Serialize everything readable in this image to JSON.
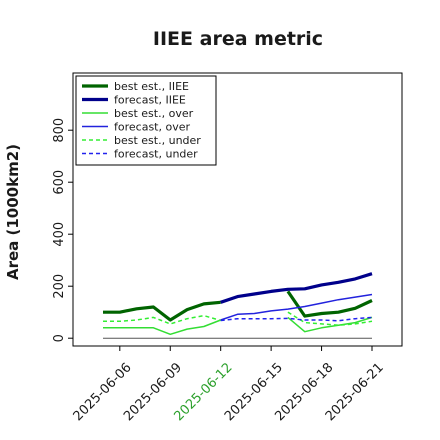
{
  "chart_data": {
    "type": "line",
    "title": "IIEE area metric",
    "xlabel": "",
    "ylabel": "Area (1000km2)",
    "ylim": [
      -30,
      1020
    ],
    "yticks": [
      0,
      200,
      400,
      600,
      800
    ],
    "x": [
      "2025-06-05",
      "2025-06-06",
      "2025-06-07",
      "2025-06-08",
      "2025-06-09",
      "2025-06-10",
      "2025-06-11",
      "2025-06-12",
      "2025-06-13",
      "2025-06-14",
      "2025-06-15",
      "2025-06-16",
      "2025-06-17",
      "2025-06-18",
      "2025-06-19",
      "2025-06-20",
      "2025-06-21"
    ],
    "xticks": [
      "2025-06-06",
      "2025-06-09",
      "2025-06-12",
      "2025-06-15",
      "2025-06-18",
      "2025-06-21"
    ],
    "highlighted_xtick": "2025-06-12",
    "highlight_color": "#2ca02c",
    "grid": false,
    "legend_position": "top-left",
    "series": [
      {
        "name": "best est., IIEE",
        "color": "#006400",
        "width": 3.2,
        "dash": "solid",
        "values": [
          100,
          100,
          113,
          120,
          70,
          110,
          132,
          138,
          null,
          null,
          null,
          180,
          85,
          95,
          100,
          115,
          145
        ]
      },
      {
        "name": "forecast, IIEE",
        "color": "#00008b",
        "width": 3.2,
        "dash": "solid",
        "values": [
          null,
          null,
          null,
          null,
          null,
          null,
          null,
          138,
          160,
          170,
          180,
          188,
          190,
          205,
          215,
          228,
          248
        ]
      },
      {
        "name": "best est., over",
        "color": "#33dd33",
        "width": 1.5,
        "dash": "solid",
        "values": [
          40,
          40,
          40,
          40,
          15,
          35,
          45,
          70,
          null,
          null,
          null,
          80,
          25,
          40,
          50,
          60,
          80
        ]
      },
      {
        "name": "forecast, over",
        "color": "#2222dd",
        "width": 1.5,
        "dash": "solid",
        "values": [
          null,
          null,
          null,
          null,
          null,
          null,
          null,
          70,
          92,
          95,
          105,
          112,
          122,
          135,
          148,
          158,
          168
        ]
      },
      {
        "name": "best est., under",
        "color": "#33ee33",
        "width": 1.5,
        "dash": "dashed",
        "values": [
          65,
          65,
          70,
          80,
          55,
          75,
          87,
          68,
          null,
          null,
          null,
          100,
          60,
          55,
          50,
          55,
          65
        ]
      },
      {
        "name": "forecast, under",
        "color": "#2222ee",
        "width": 1.5,
        "dash": "dashed",
        "values": [
          null,
          null,
          null,
          null,
          null,
          null,
          null,
          68,
          75,
          75,
          75,
          76,
          70,
          70,
          67,
          75,
          80
        ]
      }
    ]
  }
}
